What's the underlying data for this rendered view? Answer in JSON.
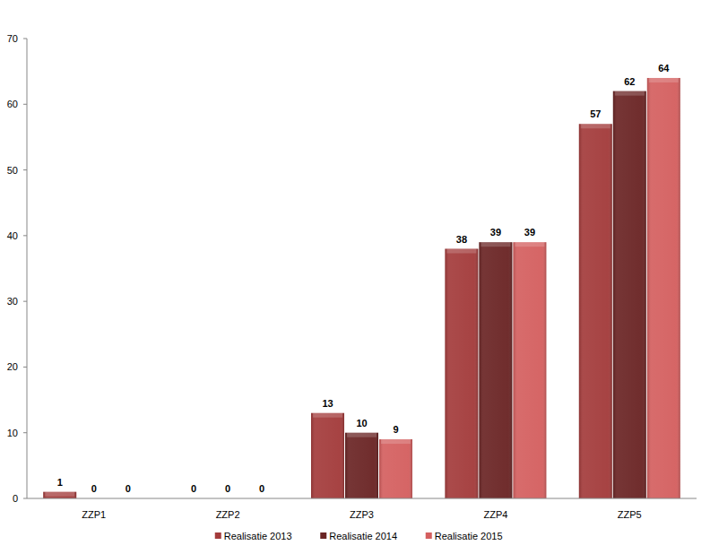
{
  "chart_data": {
    "type": "bar",
    "categories": [
      "ZZP1",
      "ZZP2",
      "ZZP3",
      "ZZP4",
      "ZZP5"
    ],
    "series": [
      {
        "name": "Realisatie 2013",
        "color": "#a33b3b",
        "values": [
          1,
          0,
          13,
          38,
          57
        ]
      },
      {
        "name": "Realisatie 2014",
        "color": "#6a2424",
        "values": [
          0,
          0,
          10,
          39,
          62
        ]
      },
      {
        "name": "Realisatie 2015",
        "color": "#d45f5f",
        "values": [
          0,
          0,
          9,
          39,
          64
        ]
      }
    ],
    "ylim": [
      0,
      70
    ],
    "yticks": [
      0,
      10,
      20,
      30,
      40,
      50,
      60,
      70
    ],
    "grid": false,
    "legend": "bottom",
    "data_labels": true
  }
}
